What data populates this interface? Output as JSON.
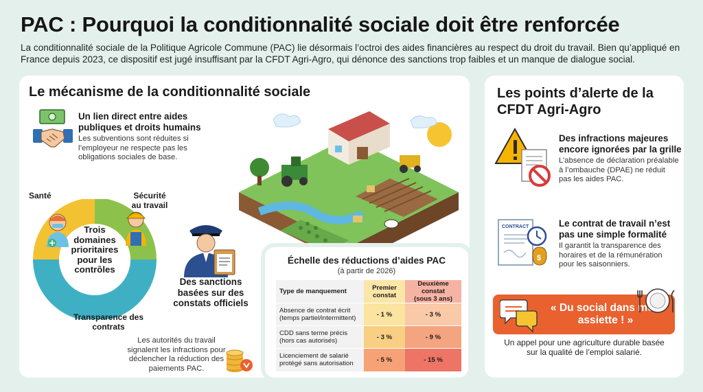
{
  "header": {
    "title": "PAC : Pourquoi la conditionnalité sociale doit être renforcée",
    "intro": "La conditionnalité sociale de la Politique Agricole Commune (PAC) lie désormais l’octroi des aides financières au respect du droit du travail. Bien qu’appliqué en France depuis 2023, ce dispositif est jugé insuffisant par la CFDT Agri-Agro, qui dénonce des sanctions trop faibles et un manque de dialogue social."
  },
  "mechanism": {
    "title": "Le mécanisme de la conditionnalité sociale",
    "link": {
      "title": "Un lien direct entre aides publiques et droits humains",
      "text": "Les subventions sont réduites si l’employeur ne respecte pas les obligations sociales de base."
    },
    "donut": {
      "center": "Trois domaines prioritaires pour les contrôles",
      "segments": [
        {
          "label": "Santé",
          "color": "#f3c232"
        },
        {
          "label": "Sécurité au travail",
          "color": "#8cc24b"
        },
        {
          "label": "Transparence des contrats",
          "color": "#3fb0c4"
        }
      ]
    },
    "sanctions": {
      "title": "Des sanctions basées sur des constats officiels",
      "text": "Les autorités du travail signalent les infractions pour déclencher la réduction des paiements PAC."
    }
  },
  "scale": {
    "title": "Échelle des réductions d’aides PAC",
    "subtitle": "(à partir de 2026)",
    "headers": {
      "type": "Type de manquement",
      "first": "Premier constat",
      "second": "Deuxième constat",
      "second_note": "(sous 3 ans)"
    },
    "rows": [
      {
        "label": "Absence de contrat écrit (temps partiel/intermittent)",
        "first": "- 1 %",
        "second": "- 3 %",
        "first_color": "#fbe3a0",
        "second_color": "#f9c9a8"
      },
      {
        "label": "CDD sans terme précis (hors cas autorisés)",
        "first": "- 3 %",
        "second": "- 9 %",
        "first_color": "#f9cf84",
        "second_color": "#f4a481"
      },
      {
        "label": "Licenciement de salarié protégé sans autorisation",
        "first": "- 5 %",
        "second": "- 15 %",
        "first_color": "#f6a276",
        "second_color": "#ee7465"
      }
    ]
  },
  "alerts": {
    "title": "Les points d’alerte de la CFDT Agri-Agro",
    "items": [
      {
        "title": "Des infractions majeures encore ignorées par la grille",
        "text": "L’absence de déclaration préalable à l’ombauche (DPAE) ne réduit pas les aides PAC."
      },
      {
        "title": "Le contrat de travail n’est pas une simple formalité",
        "text": "Il garantit la transparence des horaires et de la rémunération pour les saisonniers."
      }
    ],
    "contract_label": "CONTRACT",
    "banner": "« Du social dans mon assiette ! »",
    "closing": "Un appel pour une agriculture durable basée sur la qualité de l’emploi salarié."
  }
}
